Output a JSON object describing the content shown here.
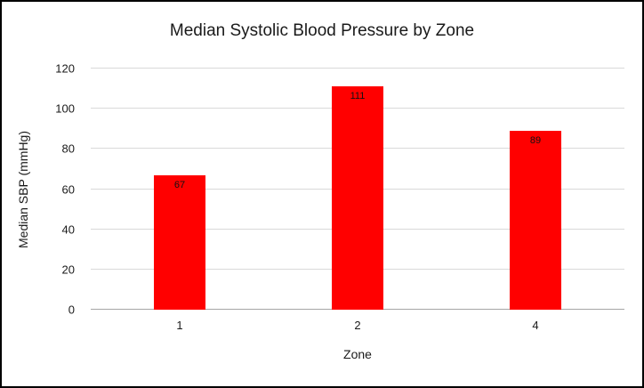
{
  "chart_data": {
    "type": "bar",
    "title": "Median Systolic Blood Pressure by Zone",
    "xlabel": "Zone",
    "ylabel": "Median SBP (mmHg)",
    "categories": [
      "1",
      "2",
      "4"
    ],
    "values": [
      67,
      111,
      89
    ],
    "ylim": [
      0,
      120
    ],
    "ytick_step": 20,
    "grid": "horizontal",
    "legend": "none",
    "bar_color": "#ff0000",
    "data_label_color": "#111111"
  }
}
